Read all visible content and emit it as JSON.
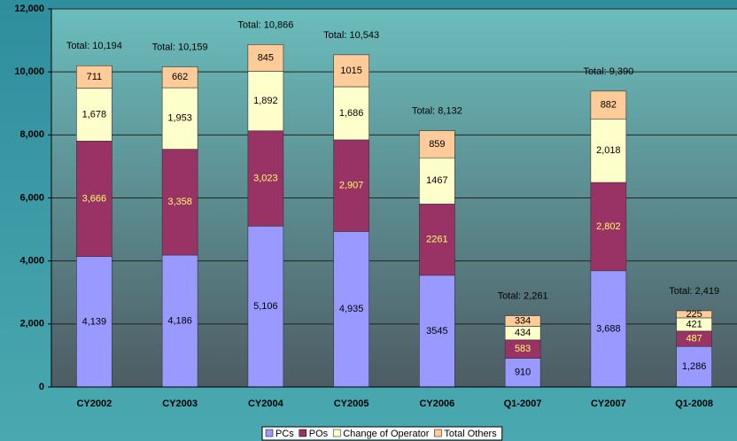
{
  "chart_data": {
    "type": "stacked-bar",
    "categories": [
      "CY2002",
      "CY2003",
      "CY2004",
      "CY2005",
      "CY2006",
      "Q1-2007",
      "CY2007",
      "Q1-2008"
    ],
    "series": [
      {
        "name": "PCs",
        "color": "#9999ff",
        "label_color": "#000000",
        "values": [
          4139,
          4186,
          5106,
          4935,
          3545,
          910,
          3688,
          1286
        ],
        "value_labels": [
          "4,139",
          "4,186",
          "5,106",
          "4,935",
          "3545",
          "910",
          "3,688",
          "1,286"
        ]
      },
      {
        "name": "POs",
        "color": "#993366",
        "label_color": "#ffff66",
        "values": [
          3666,
          3358,
          3023,
          2907,
          2261,
          583,
          2802,
          487
        ],
        "value_labels": [
          "3,666",
          "3,358",
          "3,023",
          "2,907",
          "2261",
          "583",
          "2,802",
          "487"
        ]
      },
      {
        "name": "Change of Operator",
        "color": "#ffffcc",
        "label_color": "#000000",
        "values": [
          1678,
          1953,
          1892,
          1686,
          1467,
          434,
          2018,
          421
        ],
        "value_labels": [
          "1,678",
          "1,953",
          "1,892",
          "1,686",
          "1467",
          "434",
          "2,018",
          "421"
        ]
      },
      {
        "name": "Total Others",
        "color": "#ffcc99",
        "label_color": "#000000",
        "values": [
          711,
          662,
          845,
          1015,
          859,
          334,
          882,
          225
        ]
      }
    ],
    "total_labels": [
      "Total: 10,194",
      "Total: 10,159",
      "Total: 10,866",
      "Total: 10,543",
      "Total: 8,132",
      "Total: 2,261",
      "Total: 9,390",
      "Total: 2,419"
    ],
    "ylim": [
      0,
      12000
    ],
    "yticks": [
      0,
      {
        "value": 2000,
        "label": "2,000"
      },
      {
        "value": 4000,
        "label": "4,000"
      },
      {
        "value": 6000,
        "label": "6,000"
      },
      {
        "value": 8000,
        "label": "8,000"
      },
      {
        "value": 10000,
        "label": "10,000"
      },
      {
        "value": 12000,
        "label": "12,000"
      }
    ],
    "grid": true
  }
}
